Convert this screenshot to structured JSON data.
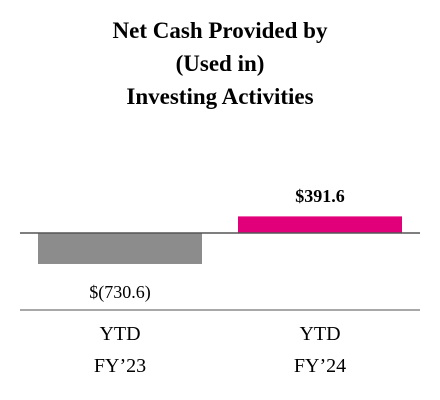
{
  "chart_data": {
    "type": "bar",
    "title": "Net Cash Provided by\n(Used in)\nInvesting Activities",
    "categories": [
      "YTD\nFY’23",
      "YTD\nFY’24"
    ],
    "values": [
      -730.6,
      391.6
    ],
    "value_labels": [
      "$(730.6)",
      "$391.6"
    ],
    "colors": [
      "#8c8c8c",
      "#e2007a"
    ]
  }
}
